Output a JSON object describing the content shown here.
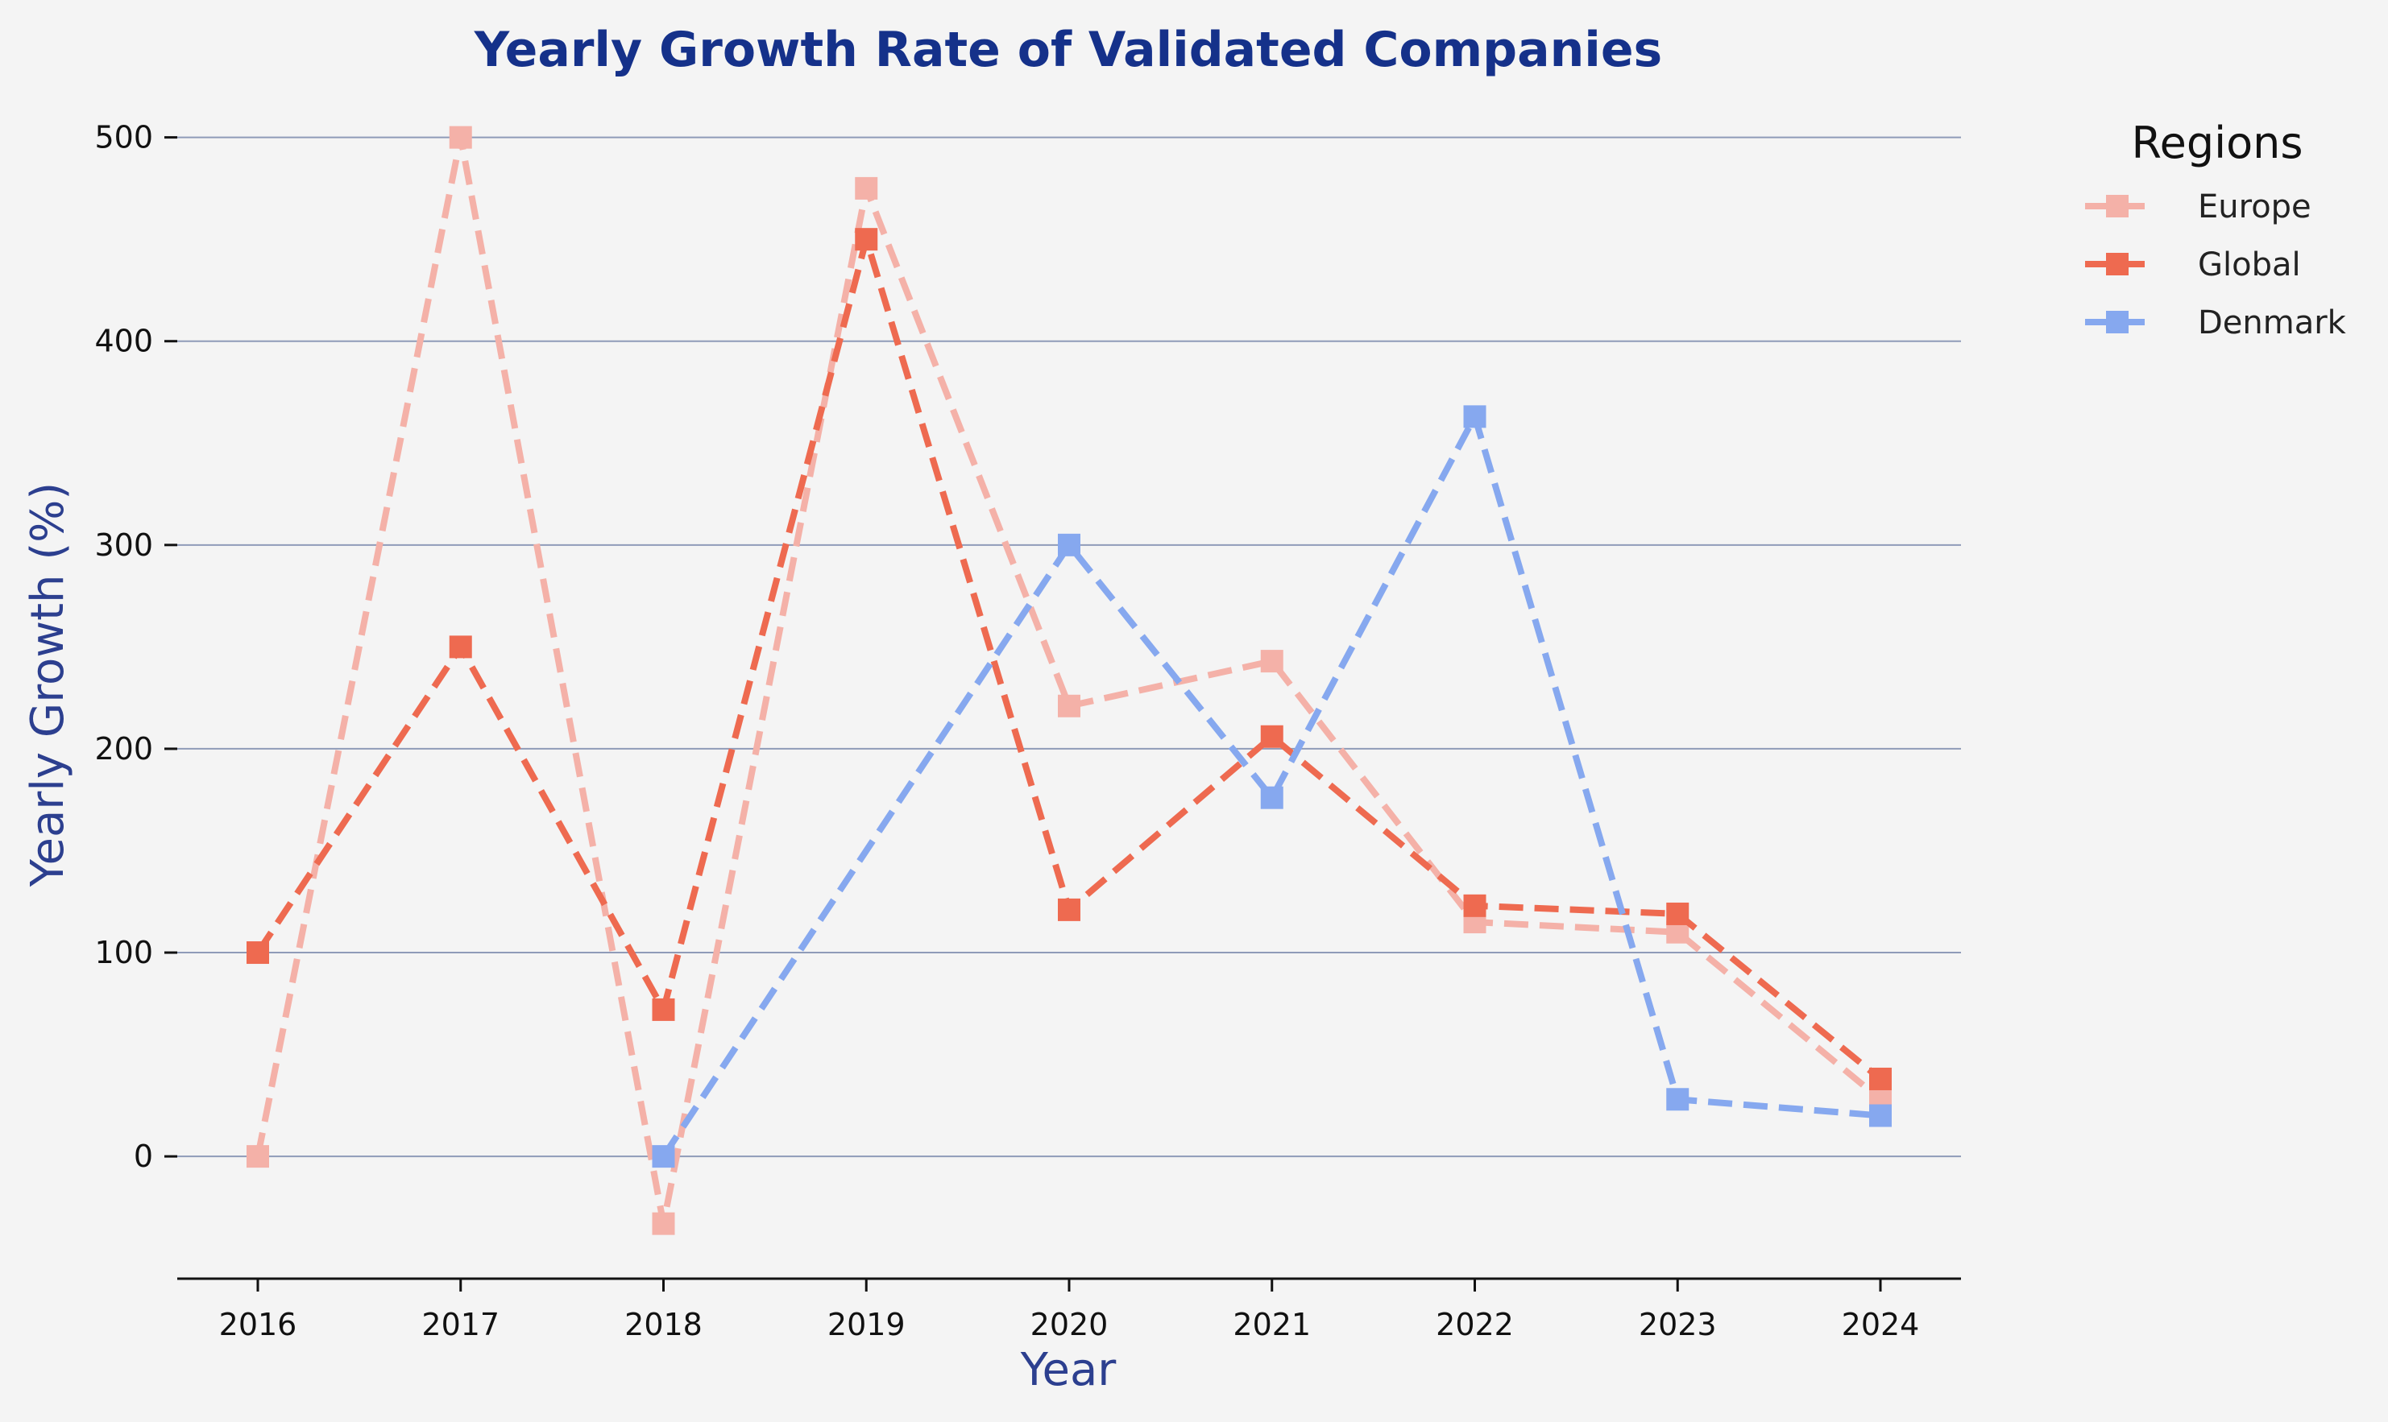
{
  "chart_data": {
    "type": "line",
    "title": "Yearly Growth Rate of Validated Companies",
    "xlabel": "Year",
    "ylabel": "Yearly Growth (%)",
    "x": [
      2016,
      2017,
      2018,
      2019,
      2020,
      2021,
      2022,
      2023,
      2024
    ],
    "x_tick_labels": [
      "2016",
      "2017",
      "2018",
      "2019",
      "2020",
      "2021",
      "2022",
      "2023",
      "2024"
    ],
    "y_ticks": [
      0,
      100,
      200,
      300,
      400,
      500
    ],
    "y_tick_labels": [
      "0",
      "100",
      "200",
      "300",
      "400",
      "500"
    ],
    "ylim": [
      -60,
      520
    ],
    "grid": "horizontal",
    "line_style": "dashed",
    "marker": "square",
    "legend": {
      "title": "Regions",
      "placement": "outside-right-top"
    },
    "series": [
      {
        "name": "Europe",
        "color": "#f4b1a8",
        "values": [
          0,
          500,
          -33,
          475,
          221,
          243,
          115,
          110,
          28
        ]
      },
      {
        "name": "Global",
        "color": "#ee6a50",
        "values": [
          100,
          250,
          72,
          450,
          121,
          206,
          123,
          119,
          38
        ]
      },
      {
        "name": "Denmark",
        "color": "#86a8ef",
        "values": [
          null,
          null,
          0,
          null,
          300,
          176,
          363,
          28,
          20
        ]
      }
    ]
  }
}
